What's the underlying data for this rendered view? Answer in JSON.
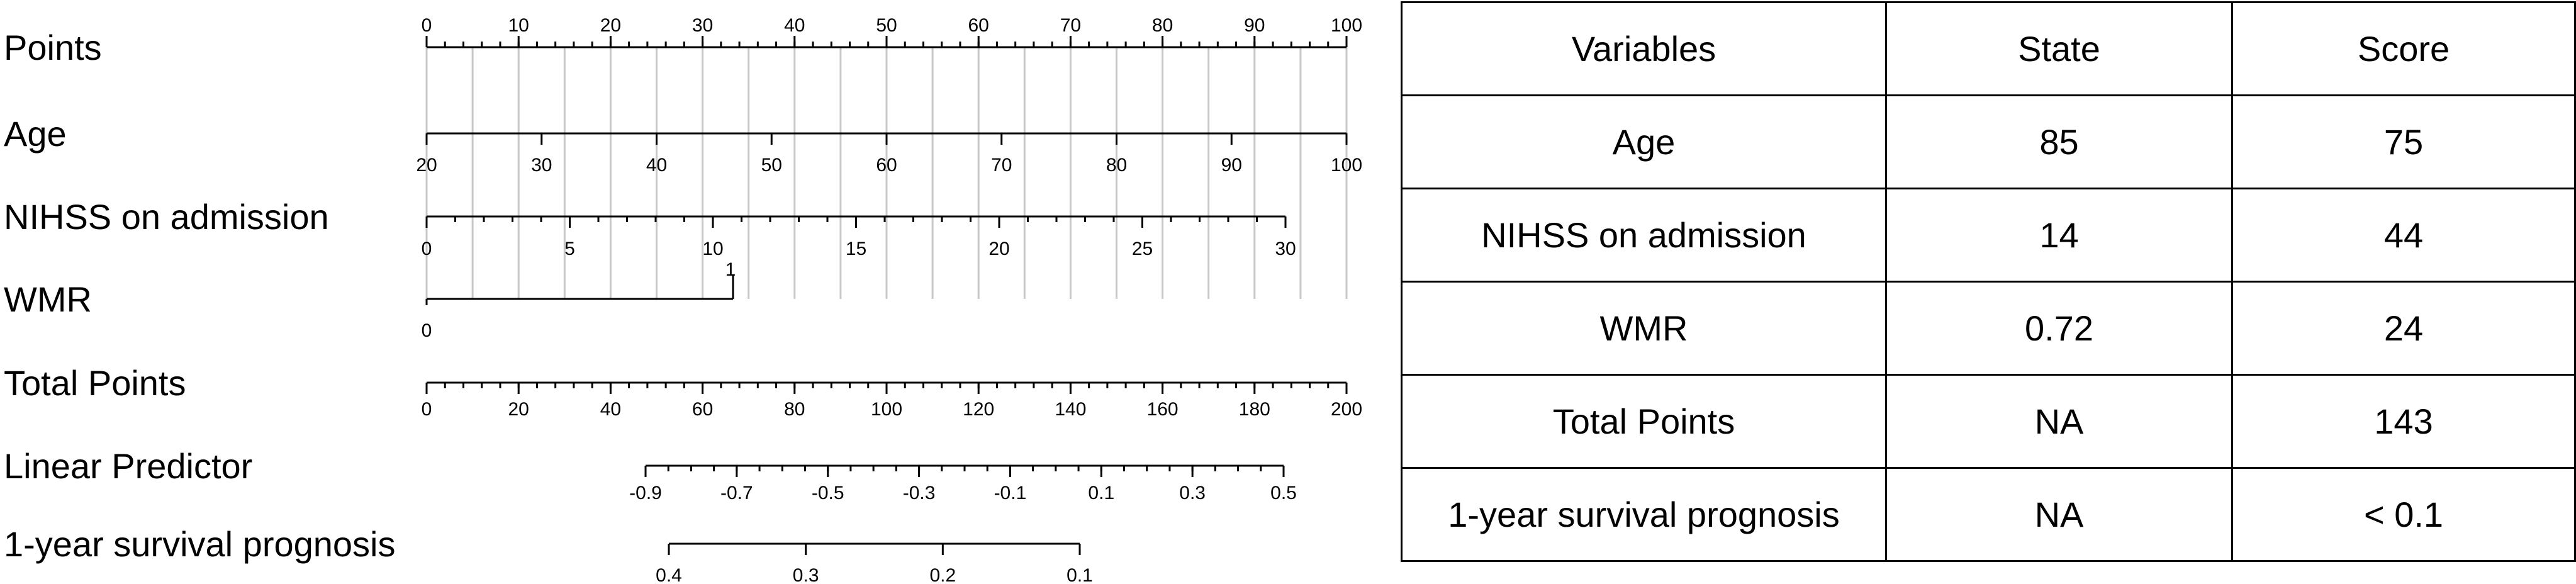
{
  "chart_data": {
    "type": "nomogram",
    "rows": [
      {
        "label": "Points",
        "ticks": [
          {
            "value": 0,
            "label": "0"
          },
          {
            "value": 10,
            "label": "10"
          },
          {
            "value": 20,
            "label": "20"
          },
          {
            "value": 30,
            "label": "30"
          },
          {
            "value": 40,
            "label": "40"
          },
          {
            "value": 50,
            "label": "50"
          },
          {
            "value": 60,
            "label": "60"
          },
          {
            "value": 70,
            "label": "70"
          },
          {
            "value": 80,
            "label": "80"
          },
          {
            "value": 90,
            "label": "90"
          },
          {
            "value": 100,
            "label": "100"
          }
        ]
      },
      {
        "label": "Age",
        "ticks": [
          {
            "value": 20,
            "label": "20"
          },
          {
            "value": 30,
            "label": "30"
          },
          {
            "value": 40,
            "label": "40"
          },
          {
            "value": 50,
            "label": "50"
          },
          {
            "value": 60,
            "label": "60"
          },
          {
            "value": 70,
            "label": "70"
          },
          {
            "value": 80,
            "label": "80"
          },
          {
            "value": 90,
            "label": "90"
          },
          {
            "value": 100,
            "label": "100"
          }
        ]
      },
      {
        "label": "NIHSS on admission",
        "ticks": [
          {
            "value": 0,
            "label": "0"
          },
          {
            "value": 5,
            "label": "5"
          },
          {
            "value": 10,
            "label": "10"
          },
          {
            "value": 15,
            "label": "15"
          },
          {
            "value": 20,
            "label": "20"
          },
          {
            "value": 25,
            "label": "25"
          },
          {
            "value": 30,
            "label": "30"
          }
        ]
      },
      {
        "label": "WMR",
        "ticks": [
          {
            "value": 0,
            "label": "0"
          },
          {
            "value": 1,
            "label": "1"
          }
        ]
      },
      {
        "label": "Total Points",
        "ticks": [
          {
            "value": 0,
            "label": "0"
          },
          {
            "value": 20,
            "label": "20"
          },
          {
            "value": 40,
            "label": "40"
          },
          {
            "value": 60,
            "label": "60"
          },
          {
            "value": 80,
            "label": "80"
          },
          {
            "value": 100,
            "label": "100"
          },
          {
            "value": 120,
            "label": "120"
          },
          {
            "value": 140,
            "label": "140"
          },
          {
            "value": 160,
            "label": "160"
          },
          {
            "value": 180,
            "label": "180"
          },
          {
            "value": 200,
            "label": "200"
          }
        ]
      },
      {
        "label": "Linear Predictor",
        "ticks": [
          {
            "value": -0.9,
            "label": "-0.9"
          },
          {
            "value": -0.7,
            "label": "-0.7"
          },
          {
            "value": -0.5,
            "label": "-0.5"
          },
          {
            "value": -0.3,
            "label": "-0.3"
          },
          {
            "value": -0.1,
            "label": "-0.1"
          },
          {
            "value": 0.1,
            "label": "0.1"
          },
          {
            "value": 0.3,
            "label": "0.3"
          },
          {
            "value": 0.5,
            "label": "0.5"
          }
        ]
      },
      {
        "label": "1-year survival prognosis",
        "ticks": [
          {
            "value": 0.4,
            "label": "0.4"
          },
          {
            "value": 0.3,
            "label": "0.3"
          },
          {
            "value": 0.2,
            "label": "0.2"
          },
          {
            "value": 0.1,
            "label": "0.1"
          }
        ]
      }
    ]
  },
  "table": {
    "headers": [
      "Variables",
      "State",
      "Score"
    ],
    "rows": [
      [
        "Age",
        "85",
        "75"
      ],
      [
        "NIHSS on admission",
        "14",
        "44"
      ],
      [
        "WMR",
        "0.72",
        "24"
      ],
      [
        "Total Points",
        "NA",
        "143"
      ],
      [
        "1-year survival prognosis",
        "NA",
        "< 0.1"
      ]
    ]
  }
}
